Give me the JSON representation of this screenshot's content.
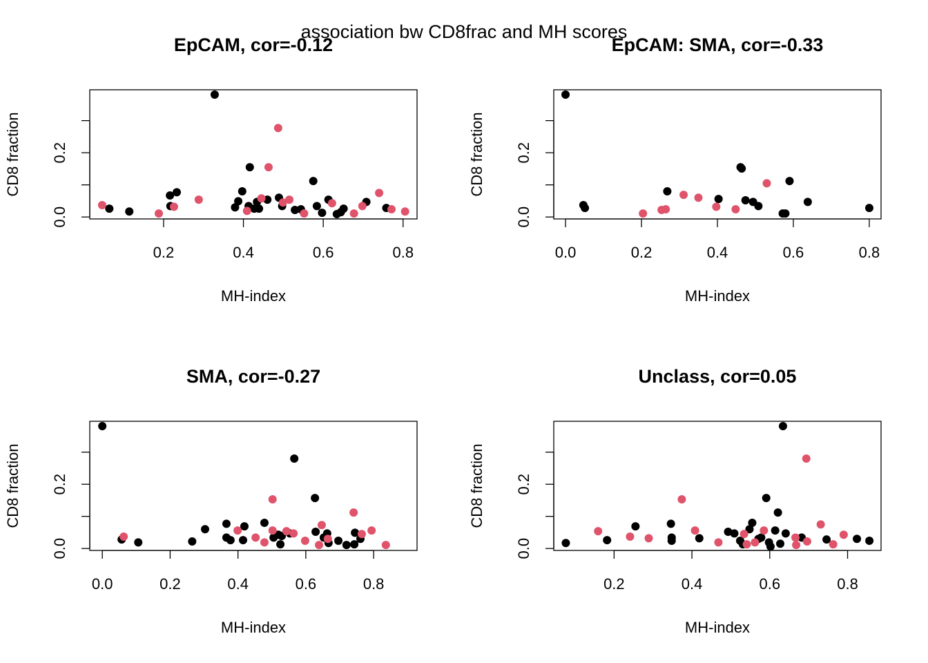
{
  "title": "association bw CD8frac and MH scores",
  "chart_data": [
    {
      "type": "scatter",
      "title": "EpCAM, cor=-0.12",
      "xlabel": "MH-index",
      "ylabel": "CD8 fraction",
      "xlim": [
        0.015,
        0.835
      ],
      "ylim": [
        -0.006,
        0.396
      ],
      "xticks": [
        0.2,
        0.4,
        0.6,
        0.8
      ],
      "yticks": [
        {
          "value": 0,
          "label": "0.0"
        },
        {
          "value": 0.1,
          "label": null
        },
        0.2,
        {
          "value": 0.3,
          "label": null
        }
      ],
      "series": [
        {
          "color": "#000000",
          "x": [
            0.328,
            0.064,
            0.114,
            0.216,
            0.233,
            0.217,
            0.397,
            0.416,
            0.379,
            0.387,
            0.413,
            0.427,
            0.434,
            0.439,
            0.46,
            0.489,
            0.497,
            0.529,
            0.544,
            0.575,
            0.584,
            0.597,
            0.613,
            0.634,
            0.644,
            0.651,
            0.708,
            0.758
          ],
          "values": [
            0.381,
            0.026,
            0.017,
            0.067,
            0.077,
            0.034,
            0.08,
            0.155,
            0.03,
            0.049,
            0.034,
            0.026,
            0.047,
            0.026,
            0.054,
            0.06,
            0.034,
            0.022,
            0.024,
            0.112,
            0.034,
            0.013,
            0.054,
            0.009,
            0.015,
            0.026,
            0.047,
            0.028
          ]
        },
        {
          "color": "#DF536B",
          "x": [
            0.046,
            0.188,
            0.226,
            0.288,
            0.409,
            0.445,
            0.463,
            0.487,
            0.499,
            0.515,
            0.552,
            0.622,
            0.677,
            0.698,
            0.74,
            0.771,
            0.805
          ],
          "values": [
            0.037,
            0.011,
            0.032,
            0.054,
            0.019,
            0.058,
            0.155,
            0.277,
            0.045,
            0.054,
            0.011,
            0.043,
            0.011,
            0.034,
            0.075,
            0.024,
            0.017
          ]
        }
      ]
    },
    {
      "type": "scatter",
      "title": "EpCAM: SMA, cor=-0.33",
      "xlabel": "MH-index",
      "ylabel": "CD8 fraction",
      "xlim": [
        -0.031,
        0.831
      ],
      "ylim": [
        -0.006,
        0.396
      ],
      "xticks": [
        {
          "value": 0,
          "label": "0.0"
        },
        0.2,
        0.4,
        0.6,
        0.8
      ],
      "yticks": [
        {
          "value": 0,
          "label": "0.0"
        },
        {
          "value": 0.1,
          "label": null
        },
        0.2,
        {
          "value": 0.3,
          "label": null
        }
      ],
      "series": [
        {
          "color": "#000000",
          "x": [
            0,
            0.047,
            0.051,
            0.268,
            0.403,
            0.461,
            0.464,
            0.474,
            0.494,
            0.508,
            0.59,
            0.572,
            0.579,
            0.638,
            0.8
          ],
          "values": [
            0.381,
            0.037,
            0.028,
            0.08,
            0.056,
            0.155,
            0.151,
            0.052,
            0.047,
            0.034,
            0.112,
            0.011,
            0.011,
            0.047,
            0.028
          ]
        },
        {
          "color": "#DF536B",
          "x": [
            0.204,
            0.253,
            0.264,
            0.311,
            0.35,
            0.397,
            0.448,
            0.53
          ],
          "values": [
            0.011,
            0.022,
            0.024,
            0.069,
            0.06,
            0.032,
            0.024,
            0.105
          ]
        }
      ]
    },
    {
      "type": "scatter",
      "title": "SMA, cor=-0.27",
      "xlabel": "MH-index",
      "ylabel": "CD8 fraction",
      "xlim": [
        -0.037,
        0.928
      ],
      "ylim": [
        -0.006,
        0.396
      ],
      "xticks": [
        {
          "value": 0,
          "label": "0.0"
        },
        0.2,
        0.4,
        0.6,
        0.8
      ],
      "yticks": [
        {
          "value": 0,
          "label": "0.0"
        },
        {
          "value": 0.1,
          "label": null
        },
        0.2,
        {
          "value": 0.3,
          "label": null
        }
      ],
      "series": [
        {
          "color": "#000000",
          "x": [
            0,
            0.057,
            0.106,
            0.265,
            0.303,
            0.366,
            0.366,
            0.378,
            0.419,
            0.415,
            0.478,
            0.505,
            0.519,
            0.525,
            0.529,
            0.553,
            0.566,
            0.627,
            0.629,
            0.653,
            0.663,
            0.667,
            0.696,
            0.72,
            0.745,
            0.743,
            0.761
          ],
          "values": [
            0.381,
            0.028,
            0.019,
            0.022,
            0.06,
            0.077,
            0.034,
            0.026,
            0.069,
            0.026,
            0.08,
            0.034,
            0.043,
            0.013,
            0.039,
            0.047,
            0.28,
            0.157,
            0.052,
            0.034,
            0.047,
            0.017,
            0.024,
            0.011,
            0.049,
            0.013,
            0.03
          ]
        },
        {
          "color": "#DF536B",
          "x": [
            0.063,
            0.399,
            0.452,
            0.478,
            0.502,
            0.502,
            0.543,
            0.564,
            0.598,
            0.639,
            0.647,
            0.665,
            0.741,
            0.765,
            0.794,
            0.836
          ],
          "values": [
            0.037,
            0.056,
            0.034,
            0.019,
            0.153,
            0.056,
            0.054,
            0.047,
            0.024,
            0.011,
            0.073,
            0.03,
            0.112,
            0.045,
            0.056,
            0.011
          ]
        }
      ]
    },
    {
      "type": "scatter",
      "title": "Unclass, cor=0.05",
      "xlabel": "MH-index",
      "ylabel": "CD8 fraction",
      "xlim": [
        0.045,
        0.886
      ],
      "ylim": [
        -0.006,
        0.396
      ],
      "xticks": [
        0.2,
        0.4,
        0.6,
        0.8
      ],
      "yticks": [
        {
          "value": 0,
          "label": "0.0"
        },
        {
          "value": 0.1,
          "label": null
        },
        0.2,
        {
          "value": 0.3,
          "label": null
        }
      ],
      "series": [
        {
          "color": "#000000",
          "x": [
            0.076,
            0.182,
            0.255,
            0.346,
            0.348,
            0.348,
            0.419,
            0.493,
            0.509,
            0.524,
            0.531,
            0.548,
            0.555,
            0.571,
            0.578,
            0.591,
            0.598,
            0.602,
            0.614,
            0.621,
            0.627,
            0.634,
            0.641,
            0.682,
            0.746,
            0.824,
            0.856
          ],
          "values": [
            0.017,
            0.026,
            0.069,
            0.077,
            0.034,
            0.024,
            0.032,
            0.052,
            0.047,
            0.024,
            0.013,
            0.06,
            0.08,
            0.03,
            0.034,
            0.157,
            0.019,
            0.006,
            0.056,
            0.112,
            0.015,
            0.381,
            0.047,
            0.034,
            0.028,
            0.03,
            0.024
          ]
        },
        {
          "color": "#DF536B",
          "x": [
            0.159,
            0.241,
            0.289,
            0.374,
            0.408,
            0.468,
            0.534,
            0.541,
            0.562,
            0.585,
            0.666,
            0.668,
            0.696,
            0.694,
            0.731,
            0.763,
            0.79
          ],
          "values": [
            0.054,
            0.037,
            0.032,
            0.153,
            0.056,
            0.019,
            0.045,
            0.013,
            0.019,
            0.056,
            0.034,
            0.011,
            0.022,
            0.28,
            0.075,
            0.013,
            0.043
          ]
        }
      ]
    }
  ]
}
